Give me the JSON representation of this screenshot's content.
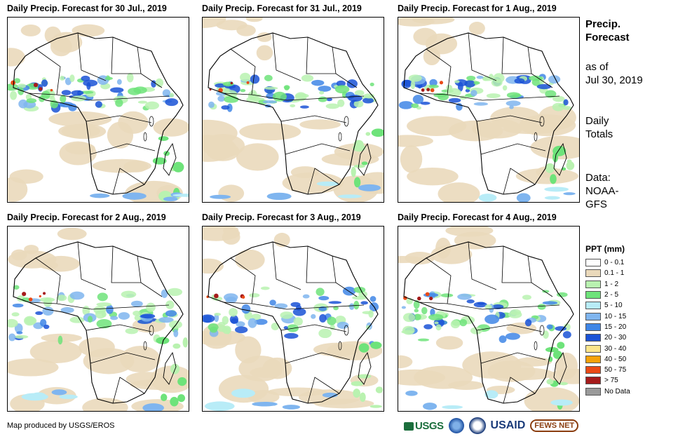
{
  "panels": [
    {
      "title": "Daily Precip. Forecast for 30 Jul., 2019"
    },
    {
      "title": "Daily Precip. Forecast for 31 Jul., 2019"
    },
    {
      "title": "Daily Precip. Forecast for 1 Aug., 2019"
    },
    {
      "title": "Daily Precip. Forecast for 2 Aug., 2019"
    },
    {
      "title": "Daily Precip. Forecast for 3 Aug., 2019"
    },
    {
      "title": "Daily Precip. Forecast for 4 Aug., 2019"
    }
  ],
  "sidebar": {
    "heading_line1": "Precip.",
    "heading_line2": "Forecast",
    "asof_line1": "as of",
    "asof_line2": "Jul 30, 2019",
    "totals_line1": "Daily",
    "totals_line2": "Totals",
    "source_line1": "Data:",
    "source_line2": "NOAA-",
    "source_line3": "GFS"
  },
  "legend": {
    "title": "PPT (mm)",
    "items": [
      {
        "label": "0 - 0.1",
        "color": "#ffffff"
      },
      {
        "label": "0.1 - 1",
        "color": "#ead9bb"
      },
      {
        "label": "1 - 2",
        "color": "#b9f2b0"
      },
      {
        "label": "2 - 5",
        "color": "#6ee37a"
      },
      {
        "label": "5 - 10",
        "color": "#b8ecf7"
      },
      {
        "label": "10 - 15",
        "color": "#7fb5ef"
      },
      {
        "label": "15 - 20",
        "color": "#3f86e6"
      },
      {
        "label": "20 - 30",
        "color": "#1a52d6"
      },
      {
        "label": "30 - 40",
        "color": "#fbe58b"
      },
      {
        "label": "40 - 50",
        "color": "#f5a20a"
      },
      {
        "label": "50 - 75",
        "color": "#ea4a16"
      },
      {
        "label": "> 75",
        "color": "#a51b1b"
      },
      {
        "label": "No Data",
        "color": "#9a9a9a"
      }
    ]
  },
  "footer": {
    "credit": "Map produced by USGS/EROS",
    "logo_usgs": "USGS",
    "logo_usaid": "USAID",
    "logo_fews": "FEWS NET"
  }
}
